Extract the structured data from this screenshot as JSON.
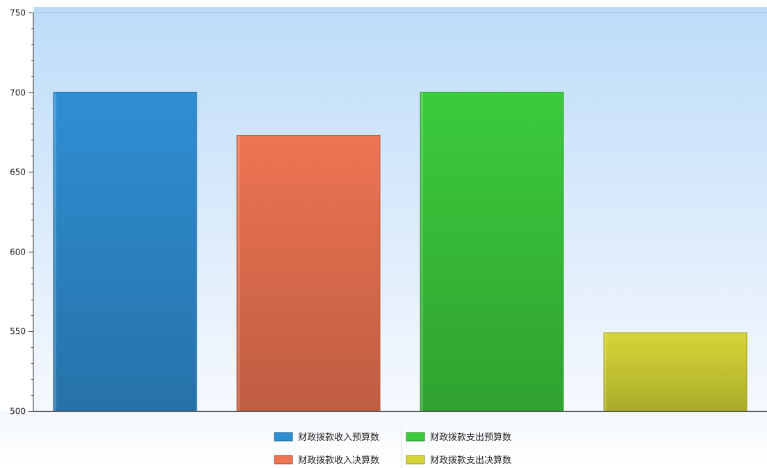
{
  "chart_data": {
    "type": "bar",
    "title": "",
    "xlabel": "",
    "ylabel": "",
    "ylim": [
      500,
      750
    ],
    "yticks": [
      500,
      550,
      600,
      650,
      700,
      750
    ],
    "grid": false,
    "legend_position": "bottom",
    "series": [
      {
        "name": "财政拨款收入预算数",
        "value": 700,
        "color": "#2f8fd3"
      },
      {
        "name": "财政拨款收入决算数",
        "value": 673,
        "color": "#ee7452"
      },
      {
        "name": "财政拨款支出预算数",
        "value": 700,
        "color": "#3ccb3c"
      },
      {
        "name": "财政拨款支出决算数",
        "value": 549,
        "color": "#d6d636"
      }
    ]
  }
}
